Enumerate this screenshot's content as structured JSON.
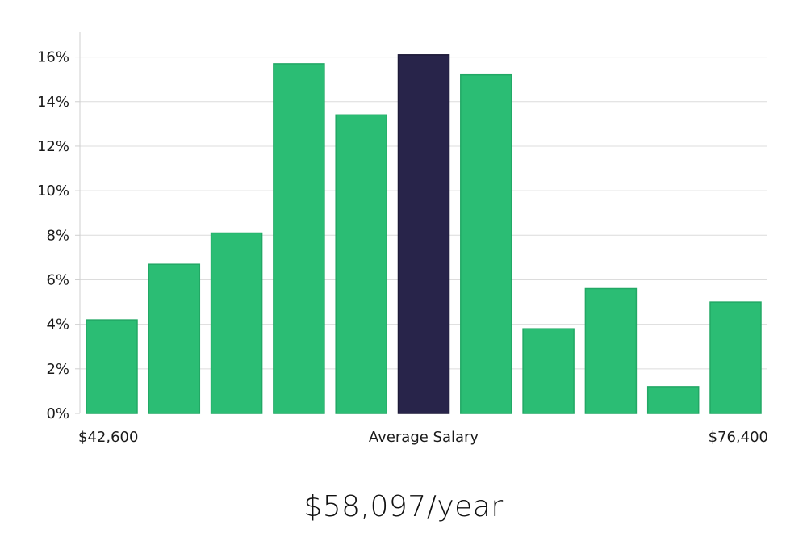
{
  "chart_data": {
    "type": "bar",
    "values": [
      4.2,
      6.7,
      8.1,
      15.7,
      13.4,
      16.1,
      15.2,
      3.8,
      5.6,
      1.2,
      5.0
    ],
    "highlight_index": 5,
    "ylim": [
      0,
      17
    ],
    "yticks": [
      0,
      2,
      4,
      6,
      8,
      10,
      12,
      14,
      16
    ],
    "ytick_suffix": "%",
    "x_labels": {
      "left": "$42,600",
      "center": "Average Salary",
      "right": "$76,400"
    },
    "grid": true
  },
  "colors": {
    "bar": "#2bbd74",
    "highlight": "#28244a"
  },
  "summary": {
    "salary": "$58,097/year"
  }
}
